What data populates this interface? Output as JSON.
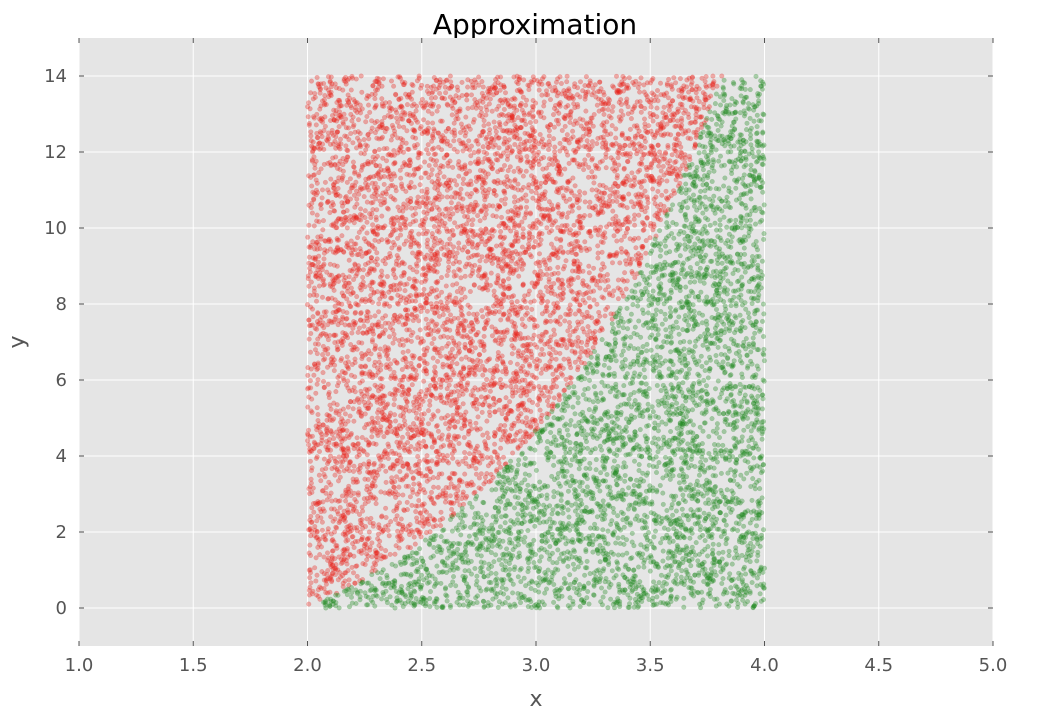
{
  "chart_data": {
    "type": "scatter",
    "title": "Approximation",
    "xlabel": "x",
    "ylabel": "y",
    "xlim": [
      1.0,
      5.0
    ],
    "ylim": [
      -1,
      15
    ],
    "xticks": [
      "1.0",
      "1.5",
      "2.0",
      "2.5",
      "3.0",
      "3.5",
      "4.0",
      "4.5",
      "5.0"
    ],
    "yticks": [
      "0",
      "2",
      "4",
      "6",
      "8",
      "10",
      "12",
      "14"
    ],
    "grid": true,
    "legend": "none",
    "colors": {
      "background": "#e5e5e5",
      "grid": "#ffffff",
      "above": "#e8231b",
      "below": "#1f8a1f"
    },
    "sampling": {
      "x_range": [
        2.0,
        4.0
      ],
      "y_range": [
        0,
        14
      ],
      "count": 10000,
      "boundary": "y = e^(x - 1) - e, clipped at 0",
      "red_region": "points above boundary",
      "green_region": "points on or below boundary",
      "alpha": 0.35
    }
  }
}
